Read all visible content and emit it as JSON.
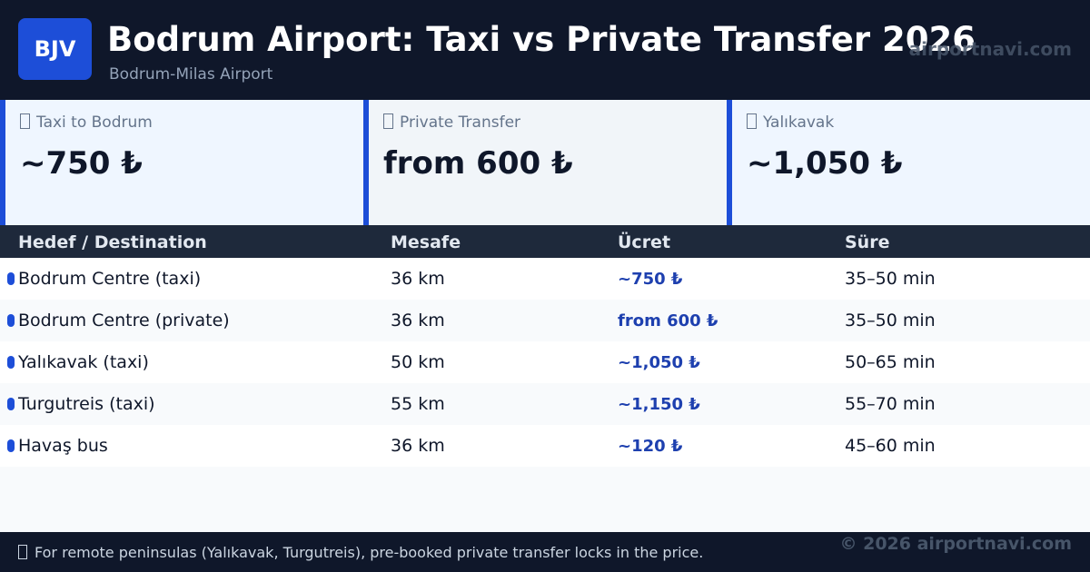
{
  "header": {
    "logo": "BJV",
    "title": "Bodrum Airport: Taxi vs Private Transfer 2026",
    "subtitle": "Bodrum-Milas Airport",
    "watermark": "airportnavi.com"
  },
  "cards": [
    {
      "label": "Taxi to Bodrum",
      "value": "~750 ₺"
    },
    {
      "label": "Private Transfer",
      "value": "from 600 ₺"
    },
    {
      "label": "Yalıkavak",
      "value": "~1,050 ₺"
    }
  ],
  "table": {
    "columns": [
      "Hedef / Destination",
      "Mesafe",
      "Ücret",
      "Süre"
    ],
    "rows": [
      [
        "Bodrum Centre (taxi)",
        "36 km",
        "~750 ₺",
        "35–50 min"
      ],
      [
        "Bodrum Centre (private)",
        "36 km",
        "from 600 ₺",
        "35–50 min"
      ],
      [
        "Yalıkavak (taxi)",
        "50 km",
        "~1,050 ₺",
        "50–65 min"
      ],
      [
        "Turgutreis (taxi)",
        "55 km",
        "~1,150 ₺",
        "55–70 min"
      ],
      [
        "Havaş bus",
        "36 km",
        "~120 ₺",
        "45–60 min"
      ]
    ]
  },
  "footer": {
    "note": "For remote peninsulas (Yalıkavak, Turgutreis), pre-booked private transfer locks in the price.",
    "copyright": "© 2026 airportnavi.com"
  }
}
